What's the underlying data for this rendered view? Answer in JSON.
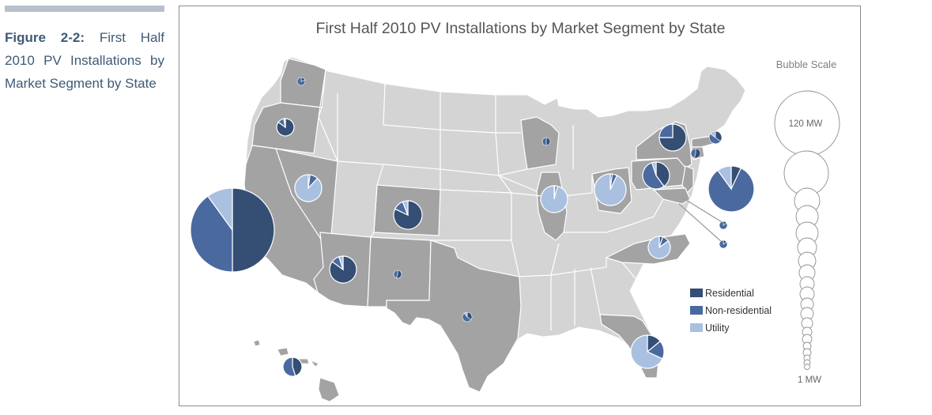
{
  "caption": {
    "label": "Figure 2-2:",
    "line1_rest": "First Half",
    "line2": "2010 PV Installations by",
    "line3": "Market Segment by State"
  },
  "map": {
    "title": "First Half 2010 PV Installations by Market Segment by State"
  },
  "bubble_scale": {
    "title": "Bubble Scale",
    "max_label": "120 MW",
    "min_label": "1 MW"
  },
  "legend": [
    {
      "label": "Residential",
      "color": "#344e74"
    },
    {
      "label": "Non-residential",
      "color": "#4a6a9f"
    },
    {
      "label": "Utility",
      "color": "#a9c0e0"
    }
  ],
  "colors": {
    "high_state": "#a3a3a3",
    "low_state": "#d4d4d4",
    "state_border": "#ffffff",
    "residential": "#344e74",
    "non_residential": "#4a6a9f",
    "utility": "#a9c0e0"
  }
}
